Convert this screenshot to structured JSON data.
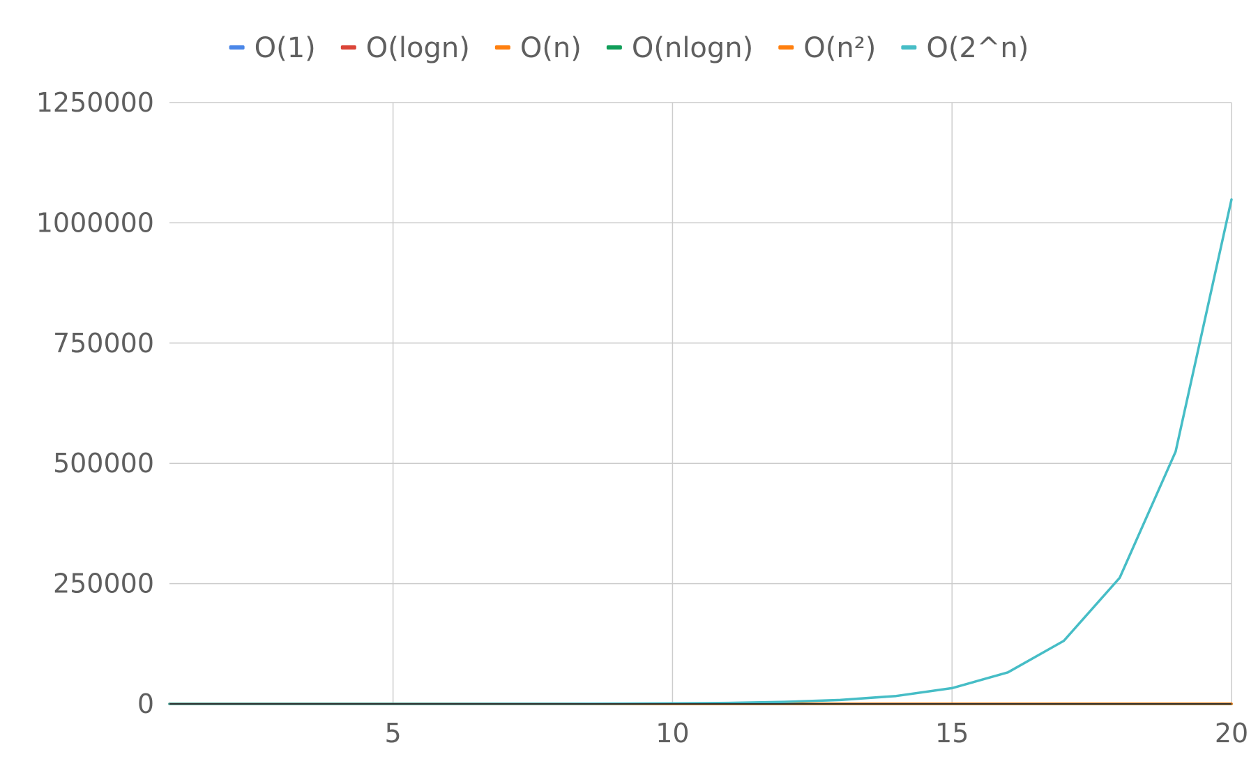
{
  "chart_data": {
    "type": "line",
    "title": "",
    "xlabel": "",
    "ylabel": "",
    "legend_position": "top-center",
    "grid": true,
    "xlim": [
      1,
      20
    ],
    "ylim": [
      0,
      1250000
    ],
    "x_ticks": [
      "5",
      "10",
      "15",
      "20"
    ],
    "y_ticks": [
      "0",
      "250000",
      "500000",
      "750000",
      "1000000",
      "1250000"
    ],
    "x": [
      1,
      2,
      3,
      4,
      5,
      6,
      7,
      8,
      9,
      10,
      11,
      12,
      13,
      14,
      15,
      16,
      17,
      18,
      19,
      20
    ],
    "series": [
      {
        "name": "O(1)",
        "color": "#4a86e8",
        "values": [
          1,
          1,
          1,
          1,
          1,
          1,
          1,
          1,
          1,
          1,
          1,
          1,
          1,
          1,
          1,
          1,
          1,
          1,
          1,
          1
        ]
      },
      {
        "name": "O(logn)",
        "color": "#db4437",
        "values": [
          0,
          1,
          1.58,
          2,
          2.32,
          2.58,
          2.81,
          3,
          3.17,
          3.32,
          3.46,
          3.58,
          3.7,
          3.81,
          3.91,
          4,
          4.09,
          4.17,
          4.25,
          4.32
        ]
      },
      {
        "name": "O(n)",
        "color": "#ff7f0e",
        "values": [
          1,
          2,
          3,
          4,
          5,
          6,
          7,
          8,
          9,
          10,
          11,
          12,
          13,
          14,
          15,
          16,
          17,
          18,
          19,
          20
        ]
      },
      {
        "name": "O(nlogn)",
        "color": "#0f9d58",
        "values": [
          0,
          2,
          4.75,
          8,
          11.61,
          15.51,
          19.65,
          24,
          28.53,
          33.22,
          38.05,
          43.02,
          48.11,
          53.3,
          58.6,
          64,
          69.49,
          75.06,
          80.71,
          86.44
        ]
      },
      {
        "name": "O(n²)",
        "color": "#ff7f0e",
        "values": [
          1,
          4,
          9,
          16,
          25,
          36,
          49,
          64,
          81,
          100,
          121,
          144,
          169,
          196,
          225,
          256,
          289,
          324,
          361,
          400
        ]
      },
      {
        "name": "O(2^n)",
        "color": "#46bdc6",
        "values": [
          2,
          4,
          8,
          16,
          32,
          64,
          128,
          256,
          512,
          1024,
          2048,
          4096,
          8192,
          16384,
          32768,
          65536,
          131072,
          262144,
          524288,
          1048576
        ]
      }
    ]
  },
  "colors": {
    "grid": "#cccccc",
    "text": "#5f5f5f",
    "axis": "#333333"
  }
}
